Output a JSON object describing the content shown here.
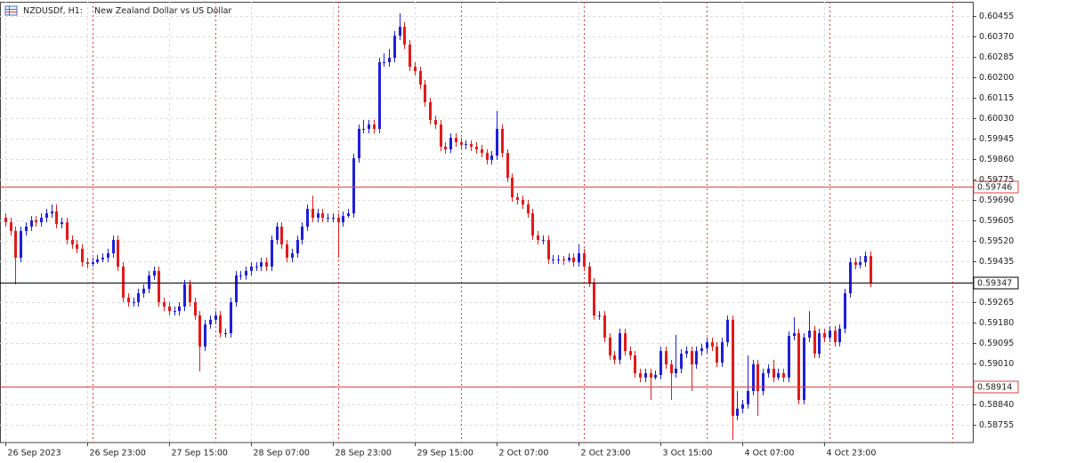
{
  "chart_data": {
    "type": "candlestick",
    "symbol": "NZDUSDf, H1:",
    "title": "New Zealand Dollar vs US Dollar",
    "up_color": "#1f1fd8",
    "down_color": "#e31a1a",
    "grid": true,
    "xlim": [
      -1,
      189
    ],
    "xticks": [
      {
        "value": 0,
        "label": "26 Sep 2023"
      },
      {
        "value": 16,
        "label": "26 Sep 23:00"
      },
      {
        "value": 32,
        "label": "27 Sep 15:00"
      },
      {
        "value": 48,
        "label": "28 Sep 07:00"
      },
      {
        "value": 64,
        "label": "28 Sep 23:00"
      },
      {
        "value": 80,
        "label": "29 Sep 15:00"
      },
      {
        "value": 96,
        "label": "2 Oct 07:00"
      },
      {
        "value": 112,
        "label": "2 Oct 23:00"
      },
      {
        "value": 128,
        "label": "3 Oct 15:00"
      },
      {
        "value": 144,
        "label": "4 Oct 07:00"
      },
      {
        "value": 160,
        "label": "4 Oct 23:00"
      }
    ],
    "separators": [
      17,
      41,
      65,
      89,
      113,
      137,
      161,
      185
    ],
    "ylim": [
      0.58683,
      0.60514
    ],
    "yticks": [
      0.60455,
      {
        "value": 0.6037,
        "label": "0.60370"
      },
      0.60285,
      {
        "value": 0.602,
        "label": "0.60200"
      },
      0.60115,
      {
        "value": 0.6003,
        "label": "0.60030"
      },
      0.59945,
      {
        "value": 0.5986,
        "label": "0.59860"
      },
      0.59775,
      {
        "value": 0.5969,
        "label": "0.59690"
      },
      0.59605,
      {
        "value": 0.5952,
        "label": "0.59520"
      },
      0.59435,
      0.59265,
      {
        "value": 0.5918,
        "label": "0.59180"
      },
      0.59095,
      {
        "value": 0.5901,
        "label": "0.59010"
      },
      {
        "value": 0.5884,
        "label": "0.58840"
      },
      0.58755
    ],
    "levels": [
      {
        "value": 0.59746,
        "color": "#e04040"
      },
      {
        "value": 0.59347,
        "color": "#000000"
      },
      {
        "value": 0.58914,
        "color": "#e04040"
      }
    ],
    "open": [
      0.59617,
      0.59598,
      0.59562,
      0.59451,
      0.59562,
      0.5958,
      0.59606,
      0.59598,
      0.59617,
      0.59635,
      0.59643,
      0.59591,
      0.59598,
      0.59525,
      0.59506,
      0.59488,
      0.59432,
      0.59425,
      0.59432,
      0.59444,
      0.59451,
      0.59469,
      0.59525,
      0.59414,
      0.59285,
      0.59266,
      0.59266,
      0.59303,
      0.59322,
      0.59377,
      0.59396,
      0.59266,
      0.59248,
      0.59229,
      0.59229,
      0.59248,
      0.5934,
      0.59266,
      0.59211,
      0.59082,
      0.59174,
      0.59193,
      0.59211,
      0.59137,
      0.59137,
      0.59266,
      0.59377,
      0.59377,
      0.59396,
      0.59414,
      0.59414,
      0.59432,
      0.59414,
      0.59525,
      0.5958,
      0.59506,
      0.59451,
      0.59469,
      0.59525,
      0.5958,
      0.59654,
      0.59617,
      0.59635,
      0.59617,
      0.59617,
      0.59617,
      0.59598,
      0.59624,
      0.59635,
      0.59864,
      0.59986,
      0.59986,
      0.60004,
      0.59986,
      0.60263,
      0.60263,
      0.60281,
      0.60373,
      0.6041,
      0.60336,
      0.60244,
      0.60226,
      0.6017,
      0.60097,
      0.60023,
      0.60004,
      0.59912,
      0.59901,
      0.59949,
      0.59931,
      0.5992,
      0.59923,
      0.59912,
      0.59901,
      0.59886,
      0.59857,
      0.59875,
      0.59986,
      0.59886,
      0.59783,
      0.59702,
      0.59691,
      0.59672,
      0.59635,
      0.59543,
      0.59525,
      0.59525,
      0.59444,
      0.59444,
      0.59444,
      0.5944,
      0.59451,
      0.59432,
      0.59469,
      0.59414,
      0.59348,
      0.59211,
      0.59211,
      0.59119,
      0.59045,
      0.59027,
      0.59137,
      0.59063,
      0.59045,
      0.58971,
      0.58953,
      0.58971,
      0.58953,
      0.58964,
      0.59063,
      0.59008,
      0.58971,
      0.5899,
      0.59052,
      0.59063,
      0.59008,
      0.59063,
      0.59075,
      0.591,
      0.59082,
      0.59015,
      0.591,
      0.59193,
      0.58794,
      0.58824,
      0.58842,
      0.58897,
      0.59008,
      0.58897,
      0.58971,
      0.5899,
      0.58953,
      0.58971,
      0.58953,
      0.59126,
      0.59137,
      0.5886,
      0.59119,
      0.59148,
      0.59052,
      0.59137,
      0.59119,
      0.59148,
      0.591,
      0.59156,
      0.59303,
      0.59432,
      0.59421,
      0.59432,
      0.59458
    ],
    "high": [
      0.59635,
      0.59617,
      0.5958,
      0.5958,
      0.59598,
      0.59624,
      0.59624,
      0.59635,
      0.59654,
      0.59672,
      0.59672,
      0.59617,
      0.59617,
      0.59543,
      0.59525,
      0.59506,
      0.59451,
      0.59451,
      0.59462,
      0.59469,
      0.59488,
      0.59543,
      0.59543,
      0.59432,
      0.59303,
      0.59285,
      0.59322,
      0.5934,
      0.59396,
      0.59414,
      0.59414,
      0.59285,
      0.59266,
      0.59248,
      0.59266,
      0.59359,
      0.59359,
      0.59285,
      0.59229,
      0.59193,
      0.59211,
      0.59229,
      0.59229,
      0.59156,
      0.59285,
      0.59396,
      0.59396,
      0.59414,
      0.59432,
      0.59432,
      0.59451,
      0.59451,
      0.59543,
      0.59598,
      0.59598,
      0.59525,
      0.59488,
      0.59543,
      0.59598,
      0.59672,
      0.59709,
      0.59654,
      0.59654,
      0.59635,
      0.59635,
      0.59635,
      0.59643,
      0.59654,
      0.59883,
      0.60004,
      0.60023,
      0.60023,
      0.60023,
      0.60281,
      0.603,
      0.60318,
      0.60392,
      0.60466,
      0.60429,
      0.60355,
      0.60263,
      0.60244,
      0.60189,
      0.60115,
      0.60041,
      0.60023,
      0.59931,
      0.59967,
      0.59967,
      0.59949,
      0.59938,
      0.59938,
      0.59931,
      0.5992,
      0.59901,
      0.59894,
      0.6006,
      0.60004,
      0.59901,
      0.59801,
      0.5972,
      0.59709,
      0.59691,
      0.59654,
      0.59562,
      0.59543,
      0.59543,
      0.59462,
      0.59462,
      0.59458,
      0.59469,
      0.59469,
      0.59506,
      0.59488,
      0.59432,
      0.59366,
      0.59229,
      0.59229,
      0.59137,
      0.59063,
      0.59156,
      0.59156,
      0.59082,
      0.59063,
      0.5899,
      0.5899,
      0.5899,
      0.58982,
      0.59082,
      0.59082,
      0.59027,
      0.5913,
      0.59071,
      0.59082,
      0.59082,
      0.59082,
      0.59093,
      0.59119,
      0.59119,
      0.591,
      0.59119,
      0.59211,
      0.59211,
      0.58897,
      0.5886,
      0.59045,
      0.59027,
      0.59027,
      0.5899,
      0.59008,
      0.59027,
      0.5899,
      0.5899,
      0.59145,
      0.59204,
      0.59156,
      0.59137,
      0.59229,
      0.59167,
      0.59156,
      0.59156,
      0.59167,
      0.59167,
      0.59174,
      0.59322,
      0.59451,
      0.59451,
      0.59458,
      0.59477,
      0.59477
    ],
    "low": [
      0.5958,
      0.59543,
      0.5934,
      0.59432,
      0.59543,
      0.59562,
      0.5958,
      0.5958,
      0.59598,
      0.59617,
      0.59573,
      0.59573,
      0.59506,
      0.59488,
      0.59469,
      0.59414,
      0.59407,
      0.59414,
      0.59425,
      0.59432,
      0.59432,
      0.59451,
      0.59396,
      0.59266,
      0.59248,
      0.59248,
      0.59248,
      0.59285,
      0.59303,
      0.59359,
      0.59248,
      0.59229,
      0.59211,
      0.59211,
      0.59211,
      0.59229,
      0.59248,
      0.59193,
      0.58979,
      0.59063,
      0.59156,
      0.59174,
      0.59119,
      0.59119,
      0.59119,
      0.59248,
      0.59359,
      0.59359,
      0.59377,
      0.59396,
      0.59396,
      0.59396,
      0.59396,
      0.59506,
      0.59488,
      0.59432,
      0.59432,
      0.59451,
      0.59506,
      0.59562,
      0.59598,
      0.59598,
      0.59598,
      0.59598,
      0.59598,
      0.59451,
      0.5958,
      0.59617,
      0.59617,
      0.59846,
      0.59967,
      0.59967,
      0.59967,
      0.59967,
      0.60244,
      0.60244,
      0.60263,
      0.60355,
      0.60318,
      0.60226,
      0.60207,
      0.60152,
      0.60078,
      0.60004,
      0.59986,
      0.59894,
      0.59883,
      0.59886,
      0.59912,
      0.59901,
      0.59901,
      0.59894,
      0.59883,
      0.59868,
      0.59838,
      0.59838,
      0.59857,
      0.59868,
      0.59765,
      0.59683,
      0.59672,
      0.59654,
      0.59617,
      0.59525,
      0.59506,
      0.59506,
      0.59425,
      0.59425,
      0.59425,
      0.59421,
      0.59432,
      0.59414,
      0.59414,
      0.59396,
      0.59329,
      0.59193,
      0.59193,
      0.591,
      0.59027,
      0.59008,
      0.59008,
      0.59045,
      0.59027,
      0.58953,
      0.58934,
      0.58934,
      0.5886,
      0.58945,
      0.58945,
      0.5899,
      0.5886,
      0.58953,
      0.58971,
      0.59034,
      0.58897,
      0.5899,
      0.59045,
      0.59056,
      0.59063,
      0.58997,
      0.58997,
      0.59082,
      0.58694,
      0.58776,
      0.58805,
      0.58824,
      0.58879,
      0.58794,
      0.58879,
      0.58953,
      0.58934,
      0.58942,
      0.58934,
      0.58934,
      0.59108,
      0.58842,
      0.58842,
      0.591,
      0.59034,
      0.59034,
      0.591,
      0.591,
      0.59082,
      0.59082,
      0.59137,
      0.59285,
      0.59403,
      0.59407,
      0.59414,
      0.59329
    ],
    "close": [
      0.59598,
      0.59562,
      0.59451,
      0.59562,
      0.5958,
      0.59606,
      0.59598,
      0.59617,
      0.59635,
      0.59643,
      0.59591,
      0.59598,
      0.59525,
      0.59506,
      0.59488,
      0.59432,
      0.59425,
      0.59432,
      0.59444,
      0.59451,
      0.59469,
      0.59525,
      0.59414,
      0.59285,
      0.59266,
      0.59266,
      0.59303,
      0.59322,
      0.59377,
      0.59396,
      0.59266,
      0.59248,
      0.59229,
      0.59229,
      0.59248,
      0.5934,
      0.59266,
      0.59211,
      0.59082,
      0.59174,
      0.59193,
      0.59211,
      0.59137,
      0.59137,
      0.59266,
      0.59377,
      0.59377,
      0.59396,
      0.59414,
      0.59414,
      0.59432,
      0.59414,
      0.59525,
      0.5958,
      0.59506,
      0.59451,
      0.59469,
      0.59525,
      0.5958,
      0.59654,
      0.59617,
      0.59635,
      0.59617,
      0.59617,
      0.59617,
      0.59598,
      0.59624,
      0.59635,
      0.59864,
      0.59986,
      0.59986,
      0.60004,
      0.59986,
      0.60263,
      0.60263,
      0.60281,
      0.60373,
      0.6041,
      0.60336,
      0.60244,
      0.60226,
      0.6017,
      0.60097,
      0.60023,
      0.60004,
      0.59912,
      0.59901,
      0.59949,
      0.59931,
      0.5992,
      0.59923,
      0.59912,
      0.59901,
      0.59886,
      0.59857,
      0.59875,
      0.59986,
      0.59886,
      0.59783,
      0.59702,
      0.59691,
      0.59672,
      0.59635,
      0.59543,
      0.59525,
      0.59525,
      0.59444,
      0.59444,
      0.59444,
      0.5944,
      0.59451,
      0.59432,
      0.59469,
      0.59414,
      0.59348,
      0.59211,
      0.59211,
      0.59119,
      0.59045,
      0.59027,
      0.59137,
      0.59063,
      0.59045,
      0.58971,
      0.58953,
      0.58971,
      0.58953,
      0.58964,
      0.59063,
      0.59008,
      0.58971,
      0.5899,
      0.59052,
      0.59063,
      0.59008,
      0.59063,
      0.59075,
      0.591,
      0.59082,
      0.59015,
      0.591,
      0.59193,
      0.58794,
      0.58824,
      0.58842,
      0.58897,
      0.59008,
      0.58897,
      0.58971,
      0.5899,
      0.58953,
      0.58971,
      0.58953,
      0.59126,
      0.59137,
      0.5886,
      0.59119,
      0.59148,
      0.59052,
      0.59137,
      0.59119,
      0.59148,
      0.591,
      0.59156,
      0.59303,
      0.59432,
      0.59421,
      0.59432,
      0.59458,
      0.59347
    ]
  }
}
